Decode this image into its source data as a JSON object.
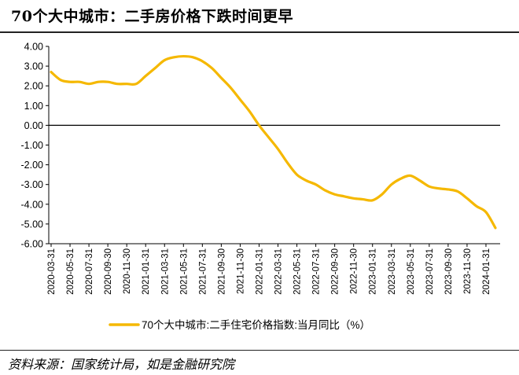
{
  "header": {
    "title": "70个大中城市：二手房价格下跌时间更早"
  },
  "footer": {
    "source": "资料来源：国家统计局，如是金融研究院"
  },
  "colors": {
    "series": "#F5B800",
    "axis": "#000000",
    "text": "#000000"
  },
  "chart_data": {
    "type": "line",
    "title": "",
    "xlabel": "",
    "ylabel": "",
    "ylim": [
      -6,
      4
    ],
    "yticks": [
      "4.00",
      "3.00",
      "2.00",
      "1.00",
      "0.00",
      "-1.00",
      "-2.00",
      "-3.00",
      "-4.00",
      "-5.00",
      "-6.00"
    ],
    "ytick_values": [
      4,
      3,
      2,
      1,
      0,
      -1,
      -2,
      -3,
      -4,
      -5,
      -6
    ],
    "xtick_labels": [
      "2020-03-31",
      "2020-05-31",
      "2020-07-31",
      "2020-09-30",
      "2020-11-30",
      "2021-01-31",
      "2021-03-31",
      "2021-05-31",
      "2021-07-31",
      "2021-09-30",
      "2021-11-30",
      "2022-01-31",
      "2022-03-31",
      "2022-05-31",
      "2022-07-31",
      "2022-09-30",
      "2022-11-30",
      "2023-01-31",
      "2023-03-31",
      "2023-05-31",
      "2023-07-31",
      "2023-09-30",
      "2023-11-30",
      "2024-01-31"
    ],
    "grid": false,
    "legend_position": "bottom",
    "series": [
      {
        "name": "70个大中城市:二手住宅价格指数:当月同比（%）",
        "x": [
          "2020-03-31",
          "2020-04-30",
          "2020-05-31",
          "2020-06-30",
          "2020-07-31",
          "2020-08-31",
          "2020-09-30",
          "2020-10-31",
          "2020-11-30",
          "2020-12-31",
          "2021-01-31",
          "2021-02-28",
          "2021-03-31",
          "2021-04-30",
          "2021-05-31",
          "2021-06-30",
          "2021-07-31",
          "2021-08-31",
          "2021-09-30",
          "2021-10-31",
          "2021-11-30",
          "2021-12-31",
          "2022-01-31",
          "2022-02-28",
          "2022-03-31",
          "2022-04-30",
          "2022-05-31",
          "2022-06-30",
          "2022-07-31",
          "2022-08-31",
          "2022-09-30",
          "2022-10-31",
          "2022-11-30",
          "2022-12-31",
          "2023-01-31",
          "2023-02-28",
          "2023-03-31",
          "2023-04-30",
          "2023-05-31",
          "2023-06-30",
          "2023-07-31",
          "2023-08-31",
          "2023-09-30",
          "2023-10-31",
          "2023-11-30",
          "2023-12-31",
          "2024-01-31",
          "2024-02-29"
        ],
        "values": [
          2.7,
          2.3,
          2.2,
          2.2,
          2.1,
          2.2,
          2.2,
          2.1,
          2.1,
          2.1,
          2.5,
          2.9,
          3.3,
          3.45,
          3.5,
          3.45,
          3.25,
          2.9,
          2.4,
          1.9,
          1.3,
          0.7,
          0.0,
          -0.6,
          -1.2,
          -1.9,
          -2.5,
          -2.8,
          -3.0,
          -3.3,
          -3.5,
          -3.6,
          -3.7,
          -3.75,
          -3.8,
          -3.5,
          -3.0,
          -2.7,
          -2.55,
          -2.8,
          -3.1,
          -3.2,
          -3.25,
          -3.35,
          -3.7,
          -4.1,
          -4.4,
          -5.2
        ]
      }
    ]
  }
}
